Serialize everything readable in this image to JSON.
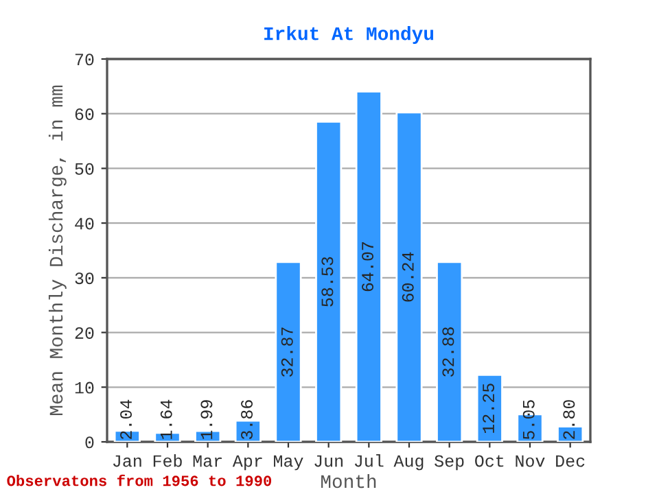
{
  "chart_data": {
    "type": "bar",
    "title": "Irkut At Mondyu",
    "xlabel": "Month",
    "ylabel": "Mean Monthly Discharge, in mm",
    "categories": [
      "Jan",
      "Feb",
      "Mar",
      "Apr",
      "May",
      "Jun",
      "Jul",
      "Aug",
      "Sep",
      "Oct",
      "Nov",
      "Dec"
    ],
    "values": [
      2.04,
      1.64,
      1.99,
      3.86,
      32.87,
      58.53,
      64.07,
      60.24,
      32.88,
      12.25,
      5.05,
      2.8
    ],
    "value_labels": [
      "2.04",
      "1.64",
      "1.99",
      "3.86",
      "32.87",
      "58.53",
      "64.07",
      "60.24",
      "32.88",
      "12.25",
      "5.05",
      "2.80"
    ],
    "color": "#3399ff",
    "ylim": [
      0,
      70
    ],
    "yticks": [
      0,
      10,
      20,
      30,
      40,
      50,
      60,
      70
    ],
    "grid": "y",
    "annotations": [
      "Observatons from 1956 to 1990"
    ]
  }
}
